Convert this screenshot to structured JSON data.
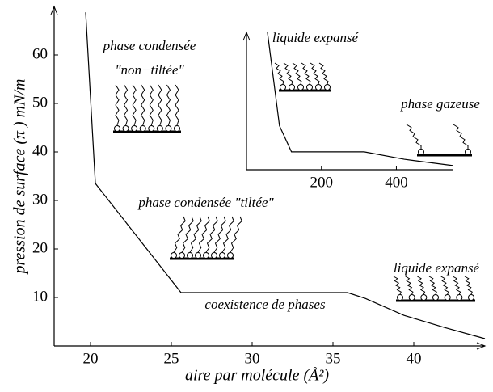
{
  "chart_data": [
    {
      "type": "line",
      "x_label": "aire par molécule (Å²)",
      "y_label": "pression de surface (π ) mN/m",
      "xlim": [
        17.75,
        44.4
      ],
      "ylim": [
        0,
        70
      ],
      "xticks": [
        20,
        25,
        30,
        35,
        40
      ],
      "yticks": [
        10,
        20,
        30,
        40,
        50,
        60
      ],
      "color": "#000000",
      "x": [
        19.7,
        20.3,
        25.6,
        35.9,
        37,
        39.4,
        41.9,
        44.4
      ],
      "values": [
        68.8,
        33.5,
        11,
        11,
        9.8,
        6.3,
        3.8,
        1.5
      ],
      "annotations": [
        "phase condensée",
        "\"non−tiltée\"",
        "phase condensée \"tiltée\"",
        "coexistence de phases",
        "liquide expansé"
      ]
    },
    {
      "type": "line",
      "xlim": [
        0,
        550
      ],
      "ylim": [
        0,
        100
      ],
      "xticks": [
        200,
        400
      ],
      "color": "#000000",
      "x": [
        56,
        88,
        120,
        314,
        421,
        551
      ],
      "values": [
        100,
        32,
        13,
        13,
        7.6,
        3
      ],
      "annotations": [
        "liquide expansé",
        "phase gazeuse"
      ]
    }
  ]
}
